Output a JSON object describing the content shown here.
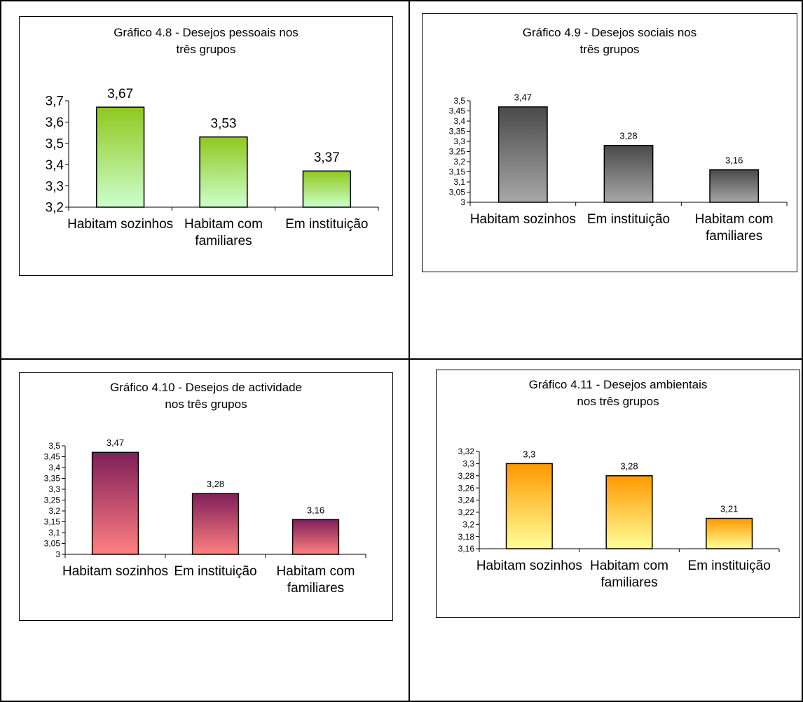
{
  "chart_data": [
    {
      "type": "bar",
      "title": "Gráfico 4.8 - Desejos pessoais nos três grupos",
      "categories": [
        "Habitam sozinhos",
        "Habitam com familiares",
        "Em instituição"
      ],
      "values": [
        3.67,
        3.53,
        3.37
      ],
      "data_labels": [
        "3,67",
        "3,53",
        "3,37"
      ],
      "ylim": [
        3.2,
        3.7
      ],
      "yticks": [
        "3,2",
        "3,3",
        "3,4",
        "3,5",
        "3,6",
        "3,7"
      ],
      "xlabel": "",
      "ylabel": "",
      "colors": {
        "top": "#8fc81e",
        "bottom": "#ccffcc"
      }
    },
    {
      "type": "bar",
      "title": "Gráfico 4.9 - Desejos sociais nos três grupos",
      "categories": [
        "Habitam sozinhos",
        "Em instituição",
        "Habitam com familiares"
      ],
      "values": [
        3.47,
        3.28,
        3.16
      ],
      "data_labels": [
        "3,47",
        "3,28",
        "3,16"
      ],
      "ylim": [
        3.0,
        3.5
      ],
      "yticks": [
        "3",
        "3,05",
        "3,1",
        "3,15",
        "3,2",
        "3,25",
        "3,3",
        "3,35",
        "3,4",
        "3,45",
        "3,5"
      ],
      "xlabel": "",
      "ylabel": "",
      "colors": {
        "top": "#4a4a4a",
        "bottom": "#a8a8a8"
      }
    },
    {
      "type": "bar",
      "title": "Gráfico 4.10 - Desejos de actividade nos três grupos",
      "categories": [
        "Habitam sozinhos",
        "Em instituição",
        "Habitam com familiares"
      ],
      "values": [
        3.47,
        3.28,
        3.16
      ],
      "data_labels": [
        "3,47",
        "3,28",
        "3,16"
      ],
      "ylim": [
        3.0,
        3.5
      ],
      "yticks": [
        "3",
        "3,05",
        "3,1",
        "3,15",
        "3,2",
        "3,25",
        "3,3",
        "3,35",
        "3,4",
        "3,45",
        "3,5"
      ],
      "xlabel": "",
      "ylabel": "",
      "colors": {
        "top": "#7f1f5a",
        "bottom": "#ff8080"
      }
    },
    {
      "type": "bar",
      "title": "Gráfico 4.11 - Desejos ambientais nos três grupos",
      "categories": [
        "Habitam sozinhos",
        "Habitam com familiares",
        "Em instituição"
      ],
      "values": [
        3.3,
        3.28,
        3.21
      ],
      "data_labels": [
        "3,3",
        "3,28",
        "3,21"
      ],
      "ylim": [
        3.16,
        3.32
      ],
      "yticks": [
        "3,16",
        "3,18",
        "3,2",
        "3,22",
        "3,24",
        "3,26",
        "3,28",
        "3,3",
        "3,32"
      ],
      "xlabel": "",
      "ylabel": "",
      "colors": {
        "top": "#ff9900",
        "bottom": "#ffff99"
      }
    }
  ]
}
